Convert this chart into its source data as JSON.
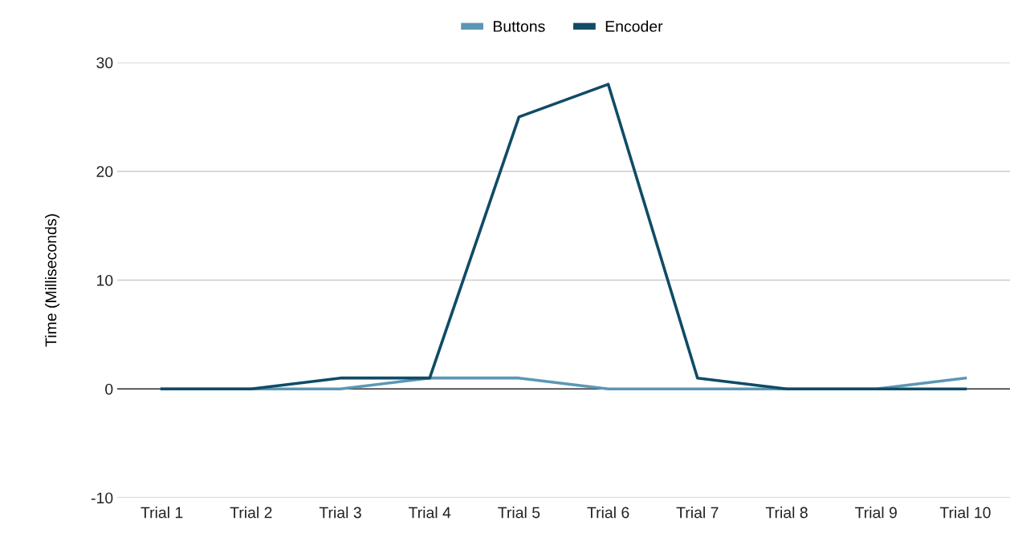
{
  "chart_data": {
    "type": "line",
    "ylabel": "Time (Milliseconds)",
    "categories": [
      "Trial 1",
      "Trial 2",
      "Trial 3",
      "Trial 4",
      "Trial 5",
      "Trial 6",
      "Trial 7",
      "Trial 8",
      "Trial 9",
      "Trial 10"
    ],
    "series": [
      {
        "name": "Buttons",
        "color": "#5b97b5",
        "values": [
          0,
          0,
          0,
          1,
          1,
          0,
          0,
          0,
          0,
          1
        ]
      },
      {
        "name": "Encoder",
        "color": "#0f4c66",
        "values": [
          0,
          0,
          1,
          1,
          25,
          28,
          1,
          0,
          0,
          0
        ]
      }
    ],
    "ylim": [
      -10,
      30
    ],
    "yticks": [
      -10,
      0,
      10,
      20,
      30
    ],
    "grid": "y",
    "legend": "top",
    "ref_lines": [
      {
        "axis": "y",
        "value": 0,
        "label": null,
        "color": "#333333"
      }
    ]
  }
}
